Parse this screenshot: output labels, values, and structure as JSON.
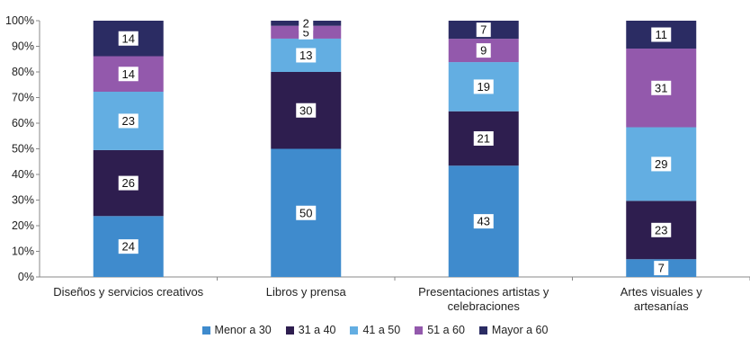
{
  "chart_data": {
    "type": "bar",
    "stacked": true,
    "categories": [
      [
        "Diseños  y servicios creativos"
      ],
      [
        "Libros y prensa"
      ],
      [
        "Presentaciones artistas y",
        "celebraciones"
      ],
      [
        "Artes visuales y",
        "artesanías"
      ]
    ],
    "series": [
      {
        "name": "Menor a 30",
        "color": "#3f8bcd",
        "values": [
          24,
          50,
          43,
          7
        ]
      },
      {
        "name": "31 a 40",
        "color": "#2e1e4f",
        "values": [
          26,
          30,
          21,
          23
        ]
      },
      {
        "name": "41 a 50",
        "color": "#63aee2",
        "values": [
          23,
          13,
          19,
          29
        ]
      },
      {
        "name": "51 a 60",
        "color": "#9359ac",
        "values": [
          14,
          5,
          9,
          31
        ]
      },
      {
        "name": "Mayor a 60",
        "color": "#2b2c63",
        "values": [
          14,
          2,
          7,
          11
        ]
      }
    ],
    "y_ticks": [
      "0%",
      "10%",
      "20%",
      "30%",
      "40%",
      "50%",
      "60%",
      "70%",
      "80%",
      "90%",
      "100%"
    ],
    "ylim": [
      0,
      100
    ],
    "grid": false,
    "legend_position": "bottom"
  }
}
